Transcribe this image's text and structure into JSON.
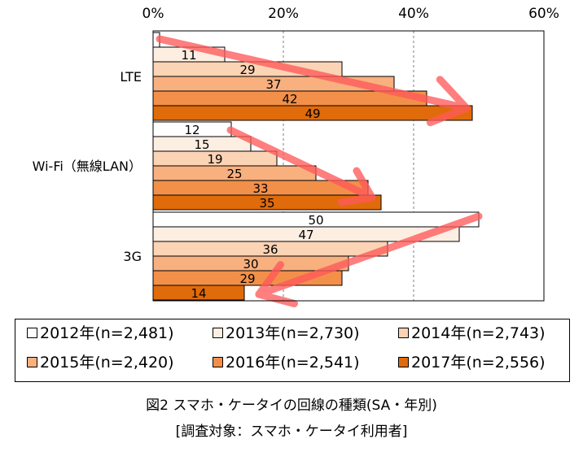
{
  "chart_data": {
    "type": "bar",
    "orientation": "horizontal",
    "categories": [
      "LTE",
      "Wi-Fi（無線LAN）",
      "3G"
    ],
    "series": [
      {
        "name": "2012年(n=2,481)",
        "color": "#ffffff",
        "values": [
          1,
          12,
          50
        ]
      },
      {
        "name": "2013年(n=2,730)",
        "color": "#fdeee2",
        "values": [
          11,
          15,
          47
        ]
      },
      {
        "name": "2014年(n=2,743)",
        "color": "#fbd3b5",
        "values": [
          29,
          19,
          36
        ]
      },
      {
        "name": "2015年(n=2,420)",
        "color": "#f8b07f",
        "values": [
          37,
          25,
          30
        ]
      },
      {
        "name": "2016年(n=2,541)",
        "color": "#f2904a",
        "values": [
          42,
          33,
          29
        ]
      },
      {
        "name": "2017年(n=2,556)",
        "color": "#e06b0b",
        "values": [
          49,
          35,
          14
        ]
      }
    ],
    "data_labels": [
      [
        "",
        "11",
        "29",
        "37",
        "42",
        "49"
      ],
      [
        "12",
        "15",
        "19",
        "25",
        "33",
        "35"
      ],
      [
        "50",
        "47",
        "36",
        "30",
        "29",
        "14"
      ]
    ],
    "xlim": [
      0,
      60
    ],
    "x_ticks": [
      0,
      20,
      40,
      60
    ],
    "x_tick_labels": [
      "0%",
      "20%",
      "40%",
      "60%"
    ],
    "grid": "vertical-dashed",
    "trend_arrow_color": "#ff5a5a",
    "legend_position": "bottom"
  },
  "caption": {
    "line1": "図2 スマホ・ケータイの回線の種類(SA・年別)",
    "line2": "[調査対象：スマホ・ケータイ利用者]"
  }
}
